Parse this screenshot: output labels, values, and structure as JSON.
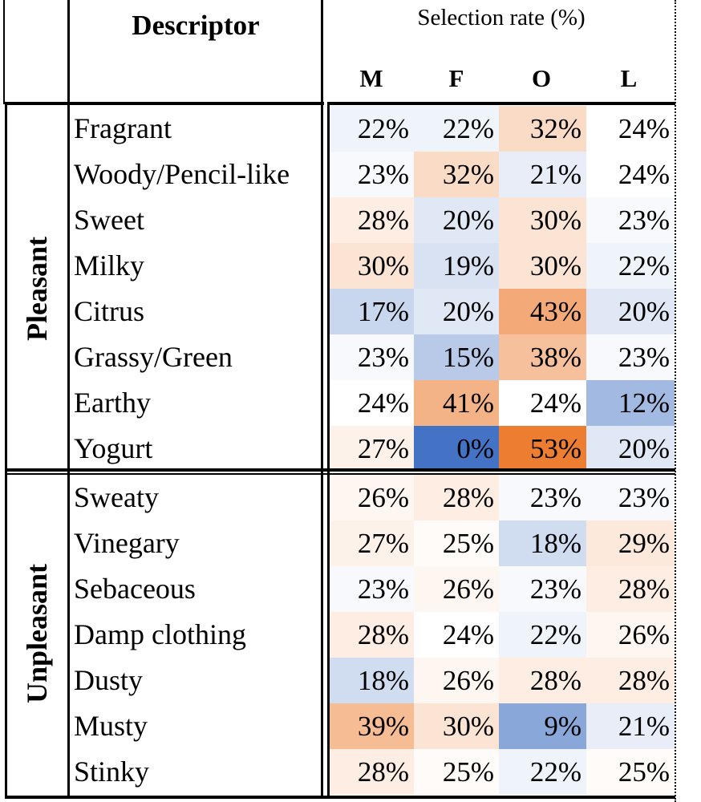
{
  "chart_data": {
    "type": "heatmap",
    "header": {
      "descriptor": "Descriptor",
      "rate_title": "Selection rate (%)"
    },
    "columns": [
      "M",
      "F",
      "O",
      "L"
    ],
    "groups": [
      {
        "name": "Pleasant",
        "rows": [
          {
            "descriptor": "Fragrant",
            "values": [
              22,
              22,
              32,
              24
            ]
          },
          {
            "descriptor": "Woody/Pencil-like",
            "values": [
              23,
              32,
              21,
              24
            ]
          },
          {
            "descriptor": "Sweet",
            "values": [
              28,
              20,
              30,
              23
            ]
          },
          {
            "descriptor": "Milky",
            "values": [
              30,
              19,
              30,
              22
            ]
          },
          {
            "descriptor": "Citrus",
            "values": [
              17,
              20,
              43,
              20
            ]
          },
          {
            "descriptor": "Grassy/Green",
            "values": [
              23,
              15,
              38,
              23
            ]
          },
          {
            "descriptor": "Earthy",
            "values": [
              24,
              41,
              24,
              12
            ]
          },
          {
            "descriptor": "Yogurt",
            "values": [
              27,
              0,
              53,
              20
            ]
          }
        ]
      },
      {
        "name": "Unpleasant",
        "rows": [
          {
            "descriptor": "Sweaty",
            "values": [
              26,
              28,
              23,
              23
            ]
          },
          {
            "descriptor": "Vinegary",
            "values": [
              27,
              25,
              18,
              29
            ]
          },
          {
            "descriptor": "Sebaceous",
            "values": [
              23,
              26,
              23,
              28
            ]
          },
          {
            "descriptor": "Damp clothing",
            "values": [
              28,
              24,
              22,
              26
            ]
          },
          {
            "descriptor": "Dusty",
            "values": [
              18,
              26,
              28,
              28
            ]
          },
          {
            "descriptor": "Musty",
            "values": [
              39,
              30,
              9,
              21
            ]
          },
          {
            "descriptor": "Stinky",
            "values": [
              28,
              25,
              22,
              25
            ]
          }
        ]
      }
    ],
    "unit": "%",
    "color_scale": {
      "low": "#4472c4",
      "mid": "#ffffff",
      "high": "#ed7d31",
      "min": 0,
      "mid_value": 24,
      "max": 53
    }
  }
}
